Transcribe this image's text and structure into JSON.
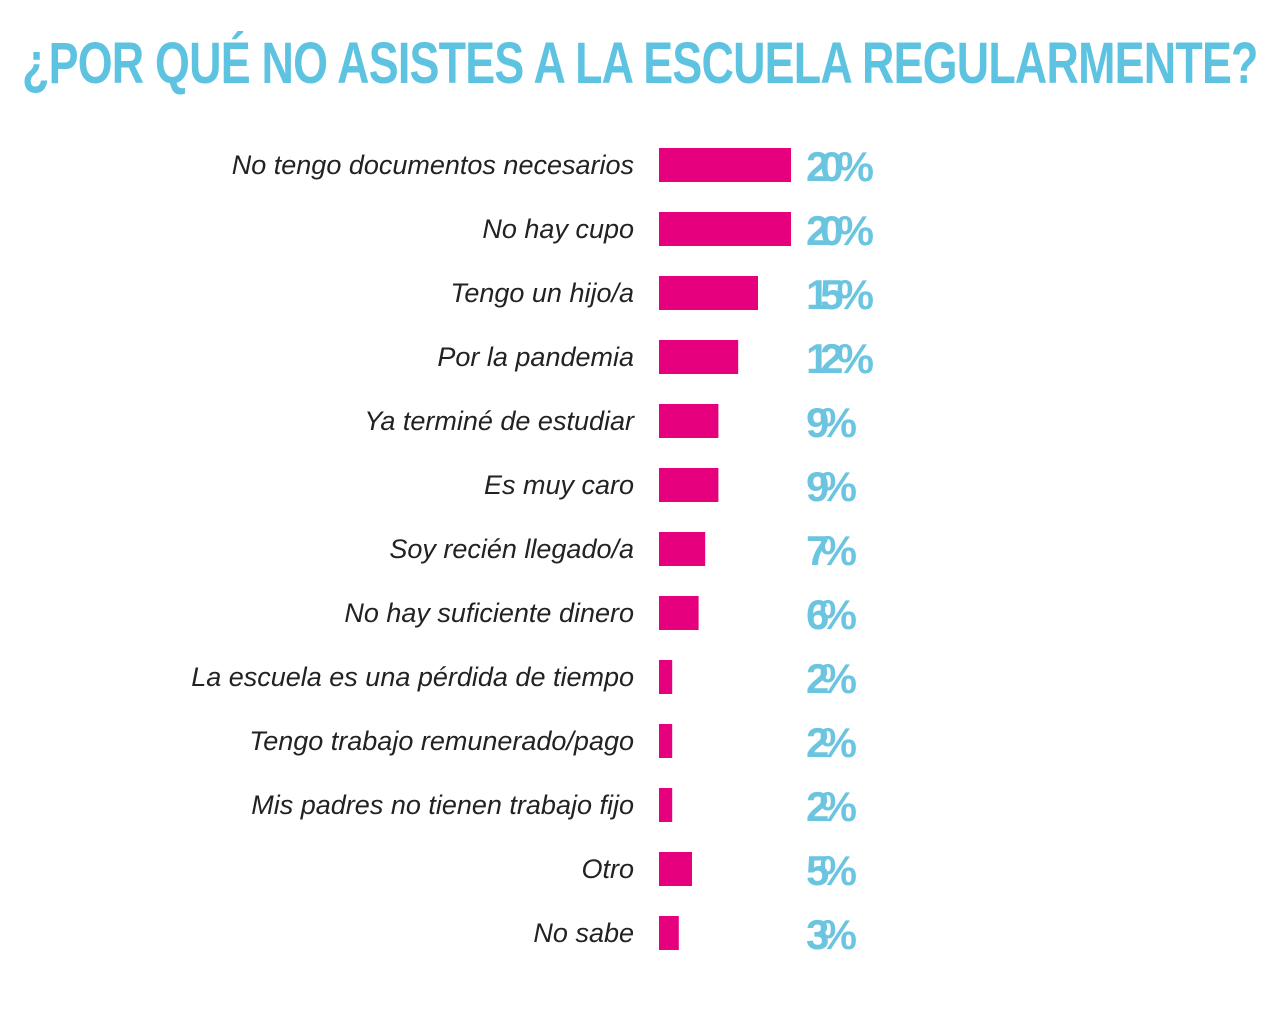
{
  "chart_data": {
    "type": "bar",
    "orientation": "horizontal",
    "title": "¿POR QUÉ NO ASISTES A LA ESCUELA REGULARMENTE?",
    "categories": [
      "No tengo documentos necesarios",
      "No hay cupo",
      "Tengo un hijo/a",
      "Por la pandemia",
      "Ya terminé de estudiar",
      "Es muy caro",
      "Soy recién llegado/a",
      "No hay suficiente dinero",
      "La escuela es una pérdida de tiempo",
      "Tengo trabajo remunerado/pago",
      "Mis padres no tienen trabajo fijo",
      "Otro",
      "No sabe"
    ],
    "values": [
      20,
      20,
      15,
      12,
      9,
      9,
      7,
      6,
      2,
      2,
      2,
      5,
      3
    ],
    "value_labels": [
      "20 %",
      "20 %",
      "15 %",
      "12 %",
      "9 %",
      "9 %",
      "7 %",
      "6 %",
      "2 %",
      "2 %",
      "2 %",
      "5 %",
      "3 %"
    ],
    "unit": "%",
    "grid": false,
    "colors": {
      "bar": "#e6007e",
      "value_text": "#6cc5e0",
      "title": "#5ec3e0"
    }
  }
}
